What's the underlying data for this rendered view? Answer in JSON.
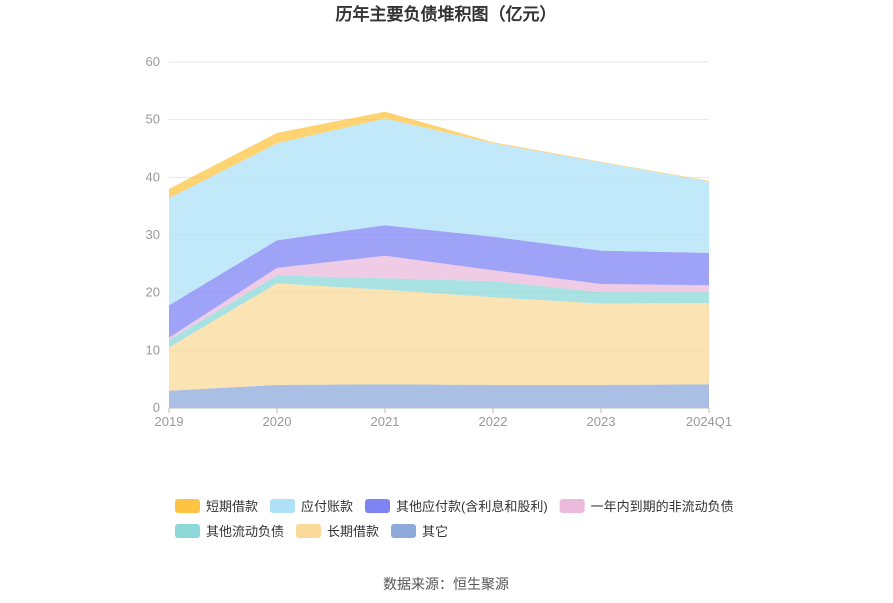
{
  "chart_data": {
    "type": "area",
    "stacked": true,
    "title": "历年主要负债堆积图（亿元）",
    "xlabel": "",
    "ylabel": "",
    "categories": [
      "2019",
      "2020",
      "2021",
      "2022",
      "2023",
      "2024Q1"
    ],
    "ylim": [
      0,
      60
    ],
    "yticks": [
      0,
      10,
      20,
      30,
      40,
      50,
      60
    ],
    "grid": true,
    "legend_position": "bottom",
    "series": [
      {
        "name": "其它",
        "color": "#8eaadb",
        "values": [
          3.0,
          4.0,
          4.1,
          4.0,
          4.0,
          4.1
        ]
      },
      {
        "name": "长期借款",
        "color": "#fbd99a",
        "values": [
          7.5,
          17.6,
          16.4,
          15.2,
          14.1,
          14.1
        ]
      },
      {
        "name": "其他流动负债",
        "color": "#8cd8d8",
        "values": [
          1.3,
          1.4,
          2.0,
          2.8,
          2.0,
          1.9
        ]
      },
      {
        "name": "一年内到期的非流动负债",
        "color": "#ebb9dc",
        "values": [
          0.4,
          1.3,
          3.9,
          1.9,
          1.4,
          1.2
        ]
      },
      {
        "name": "其他应付款(含利息和股利)",
        "color": "#7f84f5",
        "values": [
          5.6,
          4.8,
          5.3,
          5.8,
          5.8,
          5.6
        ]
      },
      {
        "name": "应付账款",
        "color": "#aee1f8",
        "values": [
          18.6,
          16.8,
          18.5,
          16.2,
          15.3,
          12.4
        ]
      },
      {
        "name": "短期借款",
        "color": "#fdc443",
        "values": [
          1.6,
          1.8,
          1.2,
          0.2,
          0.1,
          0.1
        ]
      }
    ],
    "legend_order": [
      "短期借款",
      "应付账款",
      "其他应付款(含利息和股利)",
      "一年内到期的非流动负债",
      "其他流动负债",
      "长期借款",
      "其它"
    ]
  },
  "source": "数据来源：恒生聚源"
}
